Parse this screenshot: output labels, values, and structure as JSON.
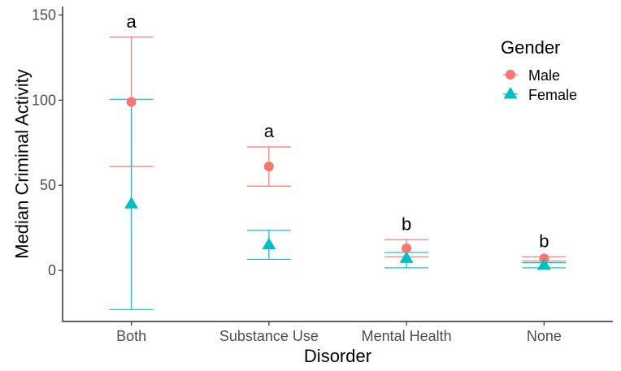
{
  "chart_data": {
    "type": "scatter",
    "title": "",
    "xlabel": "Disorder",
    "ylabel": "Median Criminal Activity",
    "categories": [
      "Both",
      "Substance Use",
      "Mental Health",
      "None"
    ],
    "ylim": [
      -30,
      155
    ],
    "yticks": [
      0,
      50,
      100,
      150
    ],
    "grid": false,
    "legend": {
      "title": "Gender",
      "position": "top-right",
      "entries": [
        {
          "name": "Male",
          "color": "#F8766D",
          "shape": "circle"
        },
        {
          "name": "Female",
          "color": "#00BFC4",
          "shape": "triangle"
        }
      ]
    },
    "series": [
      {
        "name": "Male",
        "color": "#F8766D",
        "shape": "circle",
        "values": [
          99,
          61,
          13,
          7
        ],
        "lower": [
          61,
          49.5,
          8,
          5.5
        ],
        "upper": [
          137,
          72.5,
          18,
          8
        ]
      },
      {
        "name": "Female",
        "color": "#00BFC4",
        "shape": "triangle",
        "values": [
          39,
          15,
          7,
          3
        ],
        "lower": [
          -23,
          6.5,
          1.5,
          1.5
        ],
        "upper": [
          100.5,
          23.5,
          10.5,
          4.5
        ]
      }
    ],
    "annotations": [
      {
        "category": "Both",
        "text": "a"
      },
      {
        "category": "Substance Use",
        "text": "a"
      },
      {
        "category": "Mental Health",
        "text": "b"
      },
      {
        "category": "None",
        "text": "b"
      }
    ]
  }
}
